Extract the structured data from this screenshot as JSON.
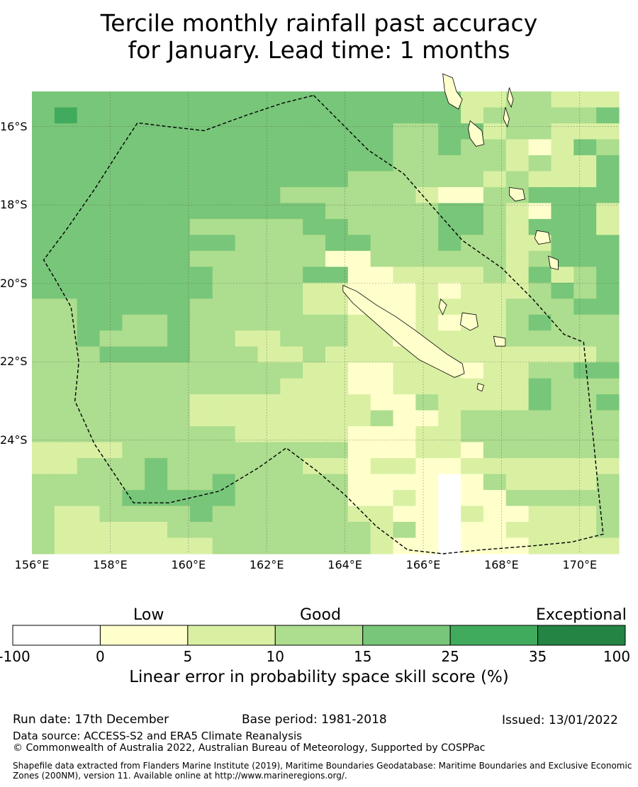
{
  "title": {
    "line1": "Tercile monthly rainfall past accuracy",
    "line2": "for January. Lead time: 1 months"
  },
  "map": {
    "lon_range": [
      156,
      171
    ],
    "lat_range": [
      -26.9,
      -15.1
    ],
    "grid_lon": [
      156,
      158,
      160,
      162,
      164,
      166,
      168,
      170
    ],
    "grid_lat": [
      -16,
      -18,
      -20,
      -22,
      -24
    ],
    "lon_labels": [
      "156°E",
      "158°E",
      "160°E",
      "162°E",
      "164°E",
      "166°E",
      "168°E",
      "170°E"
    ],
    "lat_labels": [
      "16°S",
      "18°S",
      "20°S",
      "22°S",
      "24°S"
    ],
    "cell_deg": 0.55,
    "class_colors": [
      "#ffffff",
      "#ffffcc",
      "#d9f0a3",
      "#addd8e",
      "#78c679",
      "#41ab5d",
      "#238443"
    ],
    "cells": [
      "44444444444444444442233222",
      "45444444444444444442333334",
      "44444444444444443344233222",
      "44444444444444443343321243",
      "44444444444444443333323224",
      "44444444444444333333232224",
      "44444444444333333211334444",
      "44444444444443333344321442",
      "44444443333344333344324442",
      "44444444433334433343322444",
      "44444443333331133333323444",
      "44444444333344112222324234",
      "44444444333322111212223434",
      "33444443333322111222233344",
      "33443343333333221212234333",
      "33433343322333221222233333",
      "33344443332232222222222223",
      "33333333333322112221223344",
      "33333333333222112222224333",
      "33333332222222211322224334",
      "33333332222222231123333333",
      "33333333322222111223333333",
      "22223333333333111221333333",
      "22333433333322122112222222",
      "33333433433333111101322223",
      "33334444433333112101133333",
      "32233334333333221102112223",
      "32222233333333323101122223",
      "32222222333333321101112222"
    ],
    "eez_boundary": [
      [
        163.2,
        -15.2
      ],
      [
        164.0,
        -16.0
      ],
      [
        164.6,
        -16.6
      ],
      [
        165.5,
        -17.2
      ],
      [
        166.2,
        -18.0
      ],
      [
        167.0,
        -18.9
      ],
      [
        168.0,
        -19.6
      ],
      [
        168.8,
        -20.4
      ],
      [
        169.6,
        -21.3
      ],
      [
        170.1,
        -21.5
      ],
      [
        170.3,
        -23.5
      ],
      [
        170.5,
        -25.5
      ],
      [
        170.6,
        -26.4
      ],
      [
        169.8,
        -26.6
      ],
      [
        168.8,
        -26.7
      ],
      [
        167.5,
        -26.8
      ],
      [
        166.5,
        -26.9
      ],
      [
        165.6,
        -26.8
      ],
      [
        164.8,
        -26.2
      ],
      [
        164.0,
        -25.4
      ],
      [
        163.3,
        -24.8
      ],
      [
        162.5,
        -24.2
      ],
      [
        161.8,
        -24.7
      ],
      [
        160.8,
        -25.3
      ],
      [
        159.5,
        -25.6
      ],
      [
        158.6,
        -25.6
      ],
      [
        157.6,
        -24.1
      ],
      [
        157.1,
        -23.0
      ],
      [
        157.2,
        -22.0
      ],
      [
        157.0,
        -20.6
      ],
      [
        156.6,
        -19.9
      ],
      [
        156.3,
        -19.4
      ],
      [
        156.9,
        -18.6
      ],
      [
        157.6,
        -17.6
      ],
      [
        158.3,
        -16.5
      ],
      [
        158.7,
        -15.9
      ],
      [
        159.5,
        -16.0
      ],
      [
        160.4,
        -16.1
      ],
      [
        161.5,
        -15.7
      ],
      [
        162.4,
        -15.4
      ],
      [
        163.2,
        -15.2
      ]
    ],
    "island_new_caledonia": [
      [
        163.95,
        -20.05
      ],
      [
        164.3,
        -20.2
      ],
      [
        164.8,
        -20.55
      ],
      [
        165.3,
        -20.85
      ],
      [
        165.8,
        -21.2
      ],
      [
        166.2,
        -21.5
      ],
      [
        166.6,
        -21.8
      ],
      [
        167.0,
        -22.05
      ],
      [
        167.05,
        -22.3
      ],
      [
        166.8,
        -22.4
      ],
      [
        166.4,
        -22.2
      ],
      [
        165.9,
        -21.95
      ],
      [
        165.4,
        -21.55
      ],
      [
        165.0,
        -21.2
      ],
      [
        164.6,
        -20.85
      ],
      [
        164.2,
        -20.5
      ],
      [
        163.95,
        -20.2
      ],
      [
        163.95,
        -20.05
      ]
    ],
    "island_vanuatu_north": [
      [
        166.5,
        -14.65
      ],
      [
        166.75,
        -14.75
      ],
      [
        166.85,
        -15.1
      ],
      [
        167.0,
        -15.3
      ],
      [
        166.9,
        -15.55
      ],
      [
        166.65,
        -15.4
      ],
      [
        166.55,
        -15.1
      ],
      [
        166.5,
        -14.65
      ]
    ],
    "island_malakula": [
      [
        167.2,
        -15.85
      ],
      [
        167.5,
        -16.1
      ],
      [
        167.55,
        -16.45
      ],
      [
        167.35,
        -16.5
      ],
      [
        167.2,
        -16.3
      ],
      [
        167.15,
        -16.05
      ],
      [
        167.2,
        -15.85
      ]
    ],
    "island_efate": [
      [
        168.2,
        -17.55
      ],
      [
        168.55,
        -17.6
      ],
      [
        168.6,
        -17.85
      ],
      [
        168.35,
        -17.9
      ],
      [
        168.2,
        -17.75
      ],
      [
        168.2,
        -17.55
      ]
    ],
    "island_erromango": [
      [
        168.9,
        -18.65
      ],
      [
        169.2,
        -18.7
      ],
      [
        169.25,
        -18.95
      ],
      [
        168.95,
        -19.0
      ],
      [
        168.85,
        -18.85
      ],
      [
        168.9,
        -18.65
      ]
    ],
    "island_tanna": [
      [
        169.2,
        -19.3
      ],
      [
        169.45,
        -19.4
      ],
      [
        169.45,
        -19.65
      ],
      [
        169.25,
        -19.6
      ],
      [
        169.2,
        -19.3
      ]
    ],
    "island_lifou": [
      [
        167.0,
        -20.75
      ],
      [
        167.35,
        -20.8
      ],
      [
        167.4,
        -21.1
      ],
      [
        167.2,
        -21.2
      ],
      [
        166.95,
        -21.05
      ],
      [
        167.0,
        -20.75
      ]
    ],
    "island_mare": [
      [
        167.8,
        -21.35
      ],
      [
        168.1,
        -21.4
      ],
      [
        168.1,
        -21.6
      ],
      [
        167.85,
        -21.6
      ],
      [
        167.8,
        -21.35
      ]
    ],
    "island_ouvea": [
      [
        166.45,
        -20.4
      ],
      [
        166.6,
        -20.55
      ],
      [
        166.5,
        -20.8
      ],
      [
        166.4,
        -20.6
      ],
      [
        166.45,
        -20.4
      ]
    ],
    "island_isle_of_pines": [
      [
        167.4,
        -22.55
      ],
      [
        167.55,
        -22.6
      ],
      [
        167.5,
        -22.75
      ],
      [
        167.38,
        -22.7
      ],
      [
        167.4,
        -22.55
      ]
    ],
    "island_espiritu_east": [
      [
        168.2,
        -15.0
      ],
      [
        168.3,
        -15.3
      ],
      [
        168.25,
        -15.5
      ],
      [
        168.15,
        -15.3
      ],
      [
        168.2,
        -15.0
      ]
    ],
    "island_pentecost": [
      [
        168.1,
        -15.5
      ],
      [
        168.2,
        -15.8
      ],
      [
        168.15,
        -16.0
      ],
      [
        168.05,
        -15.8
      ],
      [
        168.1,
        -15.5
      ]
    ]
  },
  "colorbar": {
    "categories": [
      "Low",
      "Good",
      "Exceptional"
    ],
    "ticks": [
      "-100",
      "0",
      "5",
      "10",
      "15",
      "25",
      "35",
      "100"
    ],
    "colors": [
      "#ffffff",
      "#ffffcc",
      "#d9f0a3",
      "#addd8e",
      "#78c679",
      "#41ab5d",
      "#238443"
    ],
    "xlabel": "Linear error in probability space skill score (%)"
  },
  "footer": {
    "run_date": "Run date: 17th December",
    "base_period": "Base period: 1981-2018",
    "issued": "Issued: 13/01/2022",
    "data_source": "Data source: ACCESS-S2 and ERA5 Climate Reanalysis",
    "copyright": "© Commonwealth of Australia 2022, Australian Bureau of Meteorology, Supported by COSPPac",
    "shapefile_line1": "Shapefile data extracted from Flanders Marine Institute (2019), Maritime Boundaries Geodatabase: Maritime Boundaries and Exclusive Economic",
    "shapefile_line2": "Zones (200NM), version 11. Available online at http://www.marineregions.org/."
  }
}
